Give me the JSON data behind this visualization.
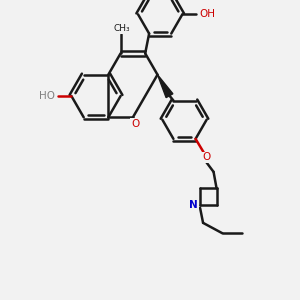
{
  "bg_color": "#f2f2f2",
  "bond_color": "#1a1a1a",
  "o_color": "#cc0000",
  "n_color": "#0000cc",
  "h_color": "#808080",
  "bond_width": 1.8,
  "figsize": [
    3.0,
    3.0
  ],
  "dpi": 100,
  "xlim": [
    0,
    10
  ],
  "ylim": [
    0,
    10
  ]
}
